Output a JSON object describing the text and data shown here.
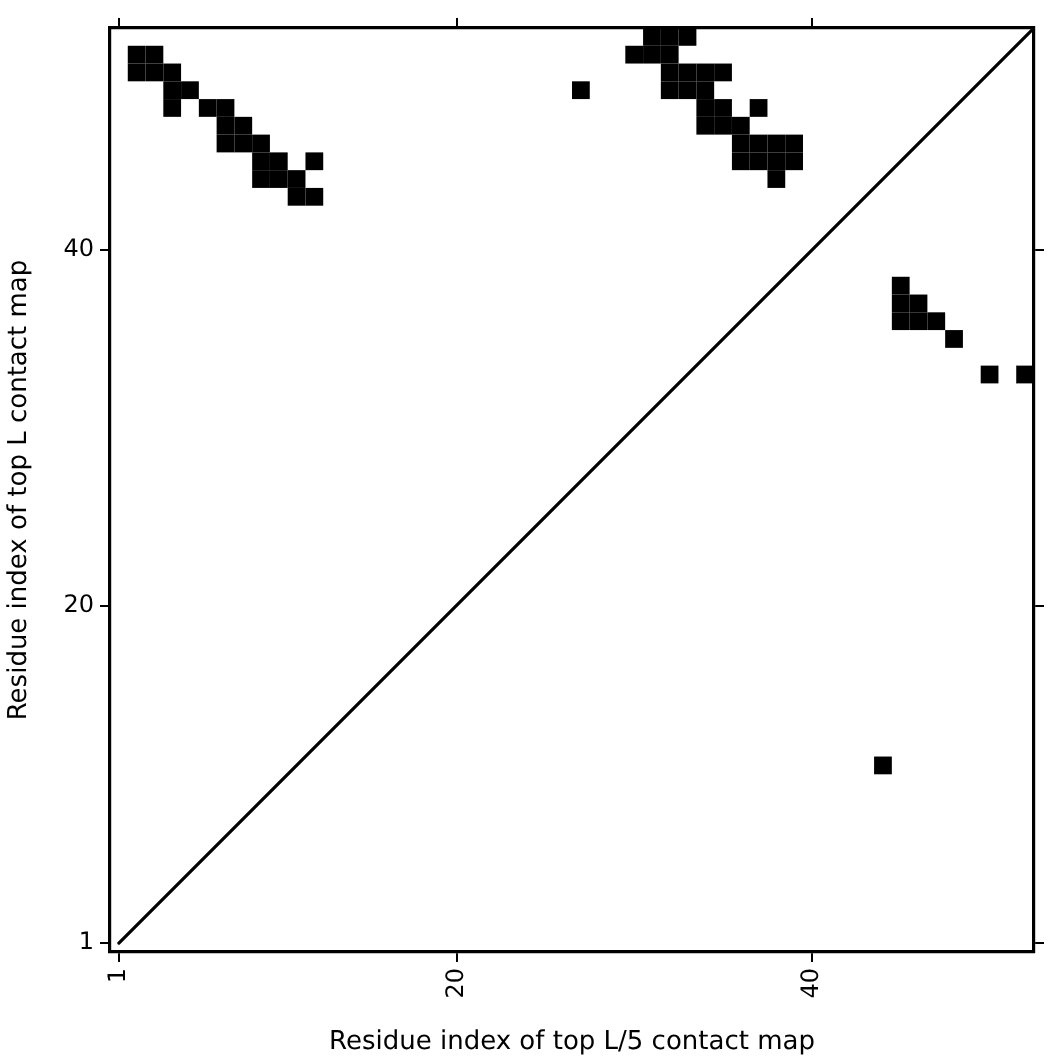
{
  "chart_data": {
    "type": "scatter",
    "xlabel": "Residue index of top L/5 contact map",
    "ylabel": "Residue index of top L contact map",
    "xlim": [
      0.5,
      52.5
    ],
    "ylim": [
      0.5,
      52.5
    ],
    "xticks": [
      1,
      20,
      40
    ],
    "yticks": [
      1,
      20,
      40
    ],
    "marker": "square",
    "grid": false,
    "legend": false,
    "series": [
      {
        "color": "#000000",
        "x": [
          2,
          3,
          2,
          3,
          4,
          4,
          5,
          4,
          6,
          7,
          7,
          8,
          7,
          8,
          9,
          9,
          10,
          12,
          9,
          10,
          11,
          11,
          12,
          31,
          32,
          33,
          30,
          31,
          32,
          32,
          33,
          34,
          35,
          27,
          32,
          33,
          34,
          34,
          35,
          37,
          34,
          35,
          36,
          36,
          37,
          38,
          39,
          36,
          37,
          38,
          39,
          38,
          45,
          45,
          46,
          45,
          46,
          47,
          48,
          50,
          52,
          44
        ],
        "values": [
          51,
          51,
          50,
          50,
          50,
          49,
          49,
          48,
          48,
          48,
          47,
          47,
          46,
          46,
          46,
          45,
          45,
          45,
          44,
          44,
          44,
          43,
          43,
          52,
          52,
          52,
          51,
          51,
          51,
          50,
          50,
          50,
          50,
          49,
          49,
          49,
          49,
          48,
          48,
          48,
          47,
          47,
          47,
          46,
          46,
          46,
          46,
          45,
          45,
          45,
          45,
          44,
          38,
          37,
          37,
          36,
          36,
          36,
          35,
          33,
          33,
          11
        ]
      },
      {
        "type": "line",
        "marker": "none",
        "color": "#000000",
        "x": [
          1,
          52.5
        ],
        "values": [
          1,
          52.5
        ]
      }
    ]
  }
}
